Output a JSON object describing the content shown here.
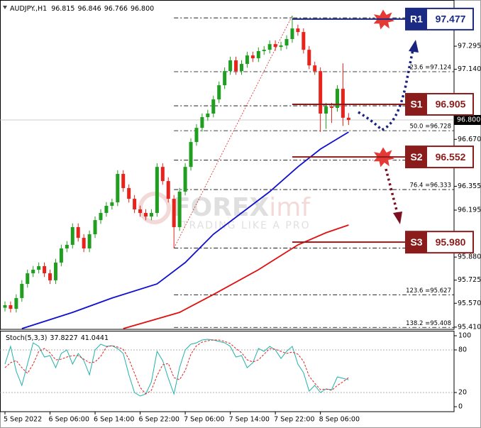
{
  "chart_data": [
    {
      "type": "candlestick",
      "title": "AUDJPY.,H1",
      "xlim": [
        -0.88,
        79.72
      ],
      "ylim": [
        95.395,
        97.605
      ],
      "yticks": [
        97.295,
        {
          "value": 97.14,
          "label": "97.140"
        },
        {
          "value": 96.67,
          "label": "96.670"
        },
        96.355,
        96.195,
        {
          "value": 95.88,
          "label": "95.880"
        },
        95.725,
        {
          "value": 95.57,
          "label": "95.570"
        },
        {
          "value": 95.41,
          "label": "95.410"
        }
      ],
      "up_color": "#1f9e1f",
      "down_color": "#e8231b",
      "open": [
        95.54,
        95.557,
        95.533,
        95.605,
        95.7,
        95.771,
        95.795,
        95.819,
        95.771,
        95.724,
        95.843,
        95.938,
        95.962,
        96.081,
        96.009,
        95.938,
        96.033,
        96.128,
        96.176,
        96.224,
        96.247,
        96.438,
        96.343,
        96.271,
        96.2,
        96.176,
        96.152,
        96.176,
        96.485,
        96.39,
        96.271,
        96.081,
        96.319,
        96.485,
        96.652,
        96.747,
        96.819,
        96.843,
        96.938,
        97.033,
        97.128,
        97.2,
        97.128,
        97.176,
        97.233,
        97.214,
        97.262,
        97.271,
        97.309,
        97.29,
        97.3,
        97.343,
        97.414,
        97.39,
        97.271,
        97.166,
        97.128,
        96.843,
        96.89,
        96.881,
        97.009,
        96.815
      ],
      "high": [
        95.582,
        95.582,
        95.63,
        95.725,
        95.796,
        95.82,
        95.844,
        95.844,
        95.796,
        95.868,
        95.963,
        95.987,
        96.106,
        96.106,
        96.034,
        96.058,
        96.153,
        96.201,
        96.249,
        96.272,
        96.463,
        96.463,
        96.368,
        96.296,
        96.225,
        96.201,
        96.201,
        96.51,
        96.51,
        96.415,
        96.296,
        96.344,
        96.51,
        96.677,
        96.772,
        96.844,
        96.868,
        96.963,
        97.058,
        97.153,
        97.225,
        97.225,
        97.201,
        97.258,
        97.258,
        97.287,
        97.296,
        97.334,
        97.334,
        97.325,
        97.368,
        97.5,
        97.439,
        97.415,
        97.296,
        97.191,
        97.153,
        96.915,
        96.915,
        97.034,
        97.18,
        96.846
      ],
      "low": [
        95.515,
        95.508,
        95.508,
        95.58,
        95.675,
        95.746,
        95.77,
        95.746,
        95.699,
        95.699,
        95.818,
        95.913,
        95.937,
        95.984,
        95.913,
        95.913,
        96.008,
        96.103,
        96.151,
        96.199,
        96.222,
        96.318,
        96.246,
        96.175,
        96.151,
        96.127,
        96.127,
        96.151,
        96.365,
        96.246,
        95.94,
        96.056,
        96.294,
        96.46,
        96.627,
        96.722,
        96.794,
        96.818,
        96.913,
        97.008,
        97.103,
        97.103,
        97.103,
        97.151,
        97.189,
        97.189,
        97.237,
        97.246,
        97.265,
        97.265,
        97.275,
        97.318,
        97.365,
        97.246,
        97.141,
        97.103,
        96.72,
        96.74,
        96.78,
        96.856,
        96.76,
        96.766
      ],
      "close": [
        95.557,
        95.533,
        95.605,
        95.7,
        95.771,
        95.795,
        95.819,
        95.771,
        95.724,
        95.843,
        95.938,
        95.962,
        96.081,
        96.009,
        95.938,
        96.033,
        96.128,
        96.176,
        96.224,
        96.247,
        96.438,
        96.343,
        96.271,
        96.2,
        96.176,
        96.152,
        96.176,
        96.485,
        96.39,
        96.271,
        96.081,
        96.319,
        96.485,
        96.652,
        96.747,
        96.819,
        96.843,
        96.938,
        97.033,
        97.128,
        97.2,
        97.128,
        97.176,
        97.233,
        97.214,
        97.262,
        97.271,
        97.309,
        97.29,
        97.3,
        97.343,
        97.414,
        97.39,
        97.271,
        97.166,
        97.128,
        96.843,
        96.89,
        96.881,
        97.009,
        96.815,
        96.8
      ],
      "last_price": {
        "value": 96.8,
        "label": "96.800"
      },
      "moving_averages": [
        {
          "color": "#1010d0",
          "x": [
            3,
            12,
            19,
            27,
            32,
            37,
            42,
            47,
            52,
            56,
            61
          ],
          "values": [
            95.4,
            95.509,
            95.605,
            95.7,
            95.843,
            96.033,
            96.176,
            96.319,
            96.485,
            96.605,
            96.719
          ]
        },
        {
          "color": "#e01010",
          "x": [
            21,
            31,
            37,
            45,
            52,
            57,
            61
          ],
          "values": [
            95.4,
            95.509,
            95.629,
            95.795,
            95.962,
            96.043,
            96.095
          ]
        }
      ],
      "fib_levels": [
        {
          "value": 97.485
        },
        {
          "value": 97.124,
          "label": "23.6 =97.124"
        },
        {
          "value": 96.895
        },
        {
          "value": 96.728,
          "label": "50.0 =96.728"
        },
        {
          "value": 96.53
        },
        {
          "value": 96.333,
          "label": "76.4 =96.333"
        },
        {
          "value": 95.94
        },
        {
          "value": 95.627,
          "label": "123.6 =95.627"
        },
        {
          "value": 95.408,
          "label": "138.2 =95.408"
        }
      ],
      "levels": [
        {
          "name": "R1",
          "value": 97.477,
          "label": "97.477",
          "color": "#1b2a83"
        },
        {
          "name": "S1",
          "value": 96.905,
          "label": "96.905",
          "color": "#8b1c1c"
        },
        {
          "name": "S2",
          "value": 96.552,
          "label": "96.552",
          "color": "#8b1c1c"
        },
        {
          "name": "S3",
          "value": 95.98,
          "label": "95.980",
          "color": "#8b1c1c"
        }
      ],
      "watermark": {
        "brand": "FOREX",
        "brand_suffix": "imf",
        "tagline": "TRADING LIKE A PRO"
      }
    },
    {
      "type": "line",
      "title": "Stoch(5,3,3)",
      "xlim": [
        -0.88,
        79.72
      ],
      "ylim": [
        -7,
        107
      ],
      "yticks": [
        100,
        80,
        20,
        0
      ],
      "levels": [
        80,
        20
      ],
      "xticks": [
        {
          "value": 0,
          "label": "5 Sep 2022"
        },
        {
          "value": 8,
          "label": "6 Sep 06:00"
        },
        {
          "value": 16,
          "label": "6 Sep 14:00"
        },
        {
          "value": 24,
          "label": "6 Sep 22:00"
        },
        {
          "value": 32,
          "label": "7 Sep 06:00"
        },
        {
          "value": 40,
          "label": "7 Sep 14:00"
        },
        {
          "value": 48,
          "label": "7 Sep 22:00"
        },
        {
          "value": 56,
          "label": "8 Sep 06:00"
        }
      ],
      "series": [
        {
          "color": "#20b2aa",
          "style": "solid",
          "values": [
            60,
            85,
            50,
            30,
            60,
            90,
            85,
            70,
            72,
            55,
            75,
            80,
            60,
            75,
            65,
            45,
            80,
            88,
            85,
            86,
            82,
            75,
            45,
            20,
            15,
            18,
            35,
            78,
            65,
            40,
            18,
            55,
            80,
            88,
            90,
            94,
            95,
            94,
            92,
            90,
            85,
            70,
            72,
            55,
            62,
            82,
            78,
            85,
            80,
            68,
            78,
            85,
            60,
            48,
            22,
            30,
            20,
            25,
            24,
            42,
            40,
            37.8227
          ]
        },
        {
          "color": "#e02020",
          "style": "dashed",
          "values": [
            55,
            62,
            65,
            55,
            47,
            60,
            78,
            82,
            76,
            66,
            67,
            70,
            72,
            72,
            67,
            62,
            63,
            71,
            84,
            86,
            84,
            81,
            67,
            47,
            27,
            18,
            23,
            44,
            59,
            61,
            41,
            38,
            51,
            74,
            86,
            91,
            93,
            94,
            94,
            92,
            89,
            82,
            76,
            66,
            63,
            66,
            74,
            82,
            81,
            78,
            75,
            77,
            74,
            64,
            43,
            33,
            24,
            25,
            23,
            30,
            35,
            41.0441
          ]
        }
      ]
    }
  ]
}
